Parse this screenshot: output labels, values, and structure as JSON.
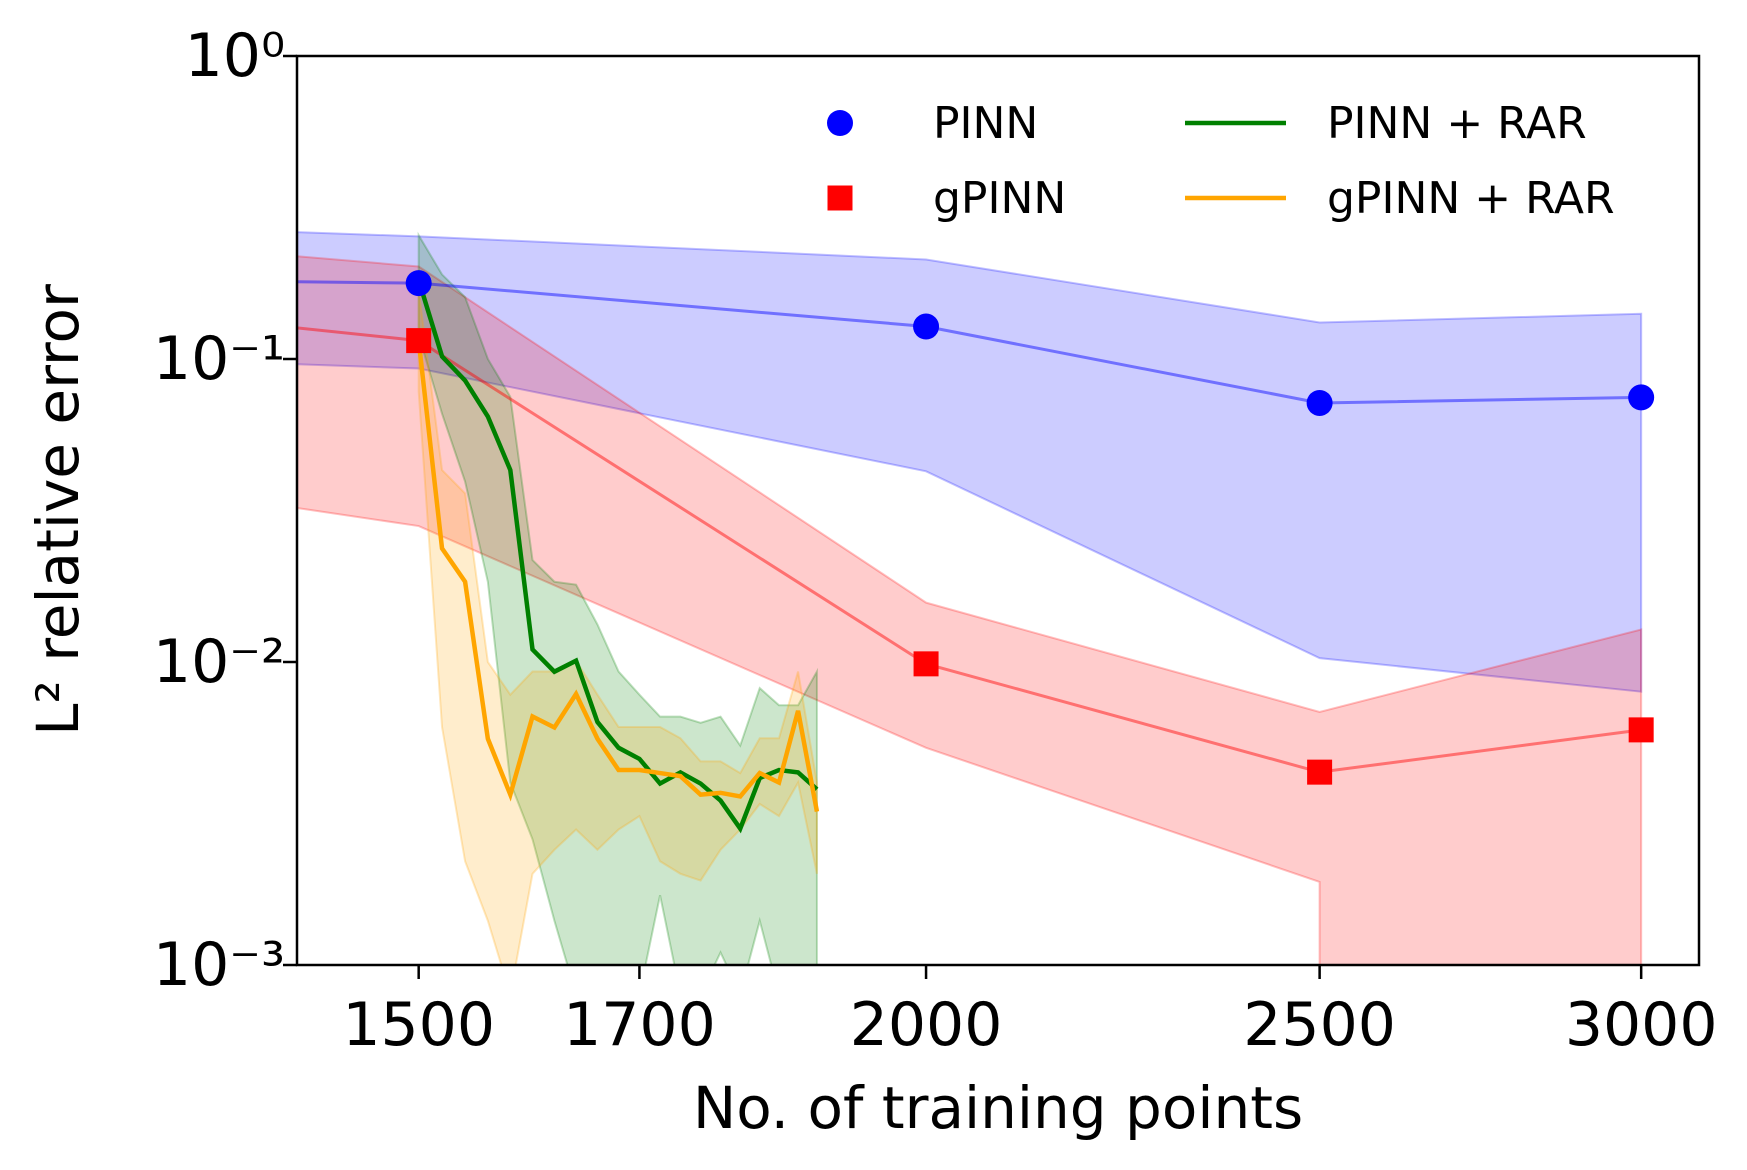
{
  "chart_data": {
    "type": "line",
    "xlabel": "No. of training points",
    "ylabel": "L² relative error",
    "xscale": "log",
    "yscale": "log",
    "xlim": [
      1400,
      3100
    ],
    "xticks": [
      1500,
      1700,
      2000,
      2500,
      3000
    ],
    "ylim": [
      0.001,
      1
    ],
    "yticks": [
      {
        "value": 0.001,
        "label": "10⁻³"
      },
      {
        "value": 0.01,
        "label": "10⁻²"
      },
      {
        "value": 0.1,
        "label": "10⁻¹"
      },
      {
        "value": 1,
        "label": "10⁰"
      }
    ],
    "legend": "upper right",
    "series": [
      {
        "name": "PINN",
        "color": "#0000ff",
        "marker": "circle",
        "x": [
          1390,
          1500,
          2000,
          2500,
          3000
        ],
        "values": [
          0.18,
          0.178,
          0.128,
          0.0716,
          0.0747
        ],
        "upper": [
          0.263,
          0.254,
          0.213,
          0.132,
          0.141
        ],
        "lower": [
          0.0964,
          0.093,
          0.0426,
          0.0103,
          0.00798
        ]
      },
      {
        "name": "gPINN",
        "color": "#ff0000",
        "marker": "square",
        "x": [
          1390,
          1500,
          2000,
          2500,
          3000
        ],
        "values": [
          0.128,
          0.115,
          0.00986,
          0.00433,
          0.00597
        ],
        "upper": [
          0.22,
          0.202,
          0.0157,
          0.00684,
          0.0128
        ],
        "lower": [
          0.0327,
          0.0281,
          0.00521,
          0.00188,
          null
        ]
      },
      {
        "name": "PINN + RAR",
        "color": "#008000",
        "marker": null,
        "x": [
          1500,
          1520,
          1540,
          1560,
          1580,
          1600,
          1620,
          1640,
          1660,
          1680,
          1700,
          1720,
          1740,
          1760,
          1780,
          1800,
          1820,
          1840,
          1860,
          1880
        ],
        "values": [
          0.182,
          0.102,
          0.0849,
          0.0646,
          0.043,
          0.011,
          0.00929,
          0.0101,
          0.00634,
          0.00521,
          0.00479,
          0.00397,
          0.00432,
          0.00397,
          0.00349,
          0.00282,
          0.00414,
          0.0044,
          0.00432,
          0.0038
        ],
        "upper": [
          0.256,
          0.19,
          0.16,
          0.1,
          0.075,
          0.0217,
          0.0184,
          0.018,
          0.0133,
          0.0093,
          0.0078,
          0.0066,
          0.0066,
          0.0063,
          0.0066,
          0.0053,
          0.0082,
          0.0072,
          0.0072,
          0.0093
        ],
        "lower": [
          0.12,
          0.066,
          0.0394,
          0.0184,
          0.004,
          0.0026,
          0.0014,
          0.0008,
          0.0008,
          0.0008,
          0.0008,
          0.0017,
          0.0008,
          0.0008,
          0.0011,
          0.0008,
          0.0014,
          0.0008,
          0.0008,
          0.0008
        ]
      },
      {
        "name": "gPINN + RAR",
        "color": "#ffa500",
        "marker": null,
        "x": [
          1500,
          1520,
          1540,
          1560,
          1580,
          1600,
          1620,
          1640,
          1660,
          1680,
          1700,
          1720,
          1740,
          1760,
          1780,
          1800,
          1820,
          1840,
          1860,
          1880
        ],
        "values": [
          0.115,
          0.0237,
          0.0184,
          0.00558,
          0.00365,
          0.00661,
          0.00608,
          0.00784,
          0.00558,
          0.0044,
          0.0044,
          0.0043,
          0.0042,
          0.00365,
          0.0037,
          0.0036,
          0.0043,
          0.004,
          0.0069,
          0.00321
        ],
        "upper": [
          0.168,
          0.043,
          0.036,
          0.01,
          0.0078,
          0.0093,
          0.0093,
          0.0101,
          0.0078,
          0.0061,
          0.0061,
          0.0061,
          0.0056,
          0.0047,
          0.0047,
          0.0043,
          0.0056,
          0.0056,
          0.0093,
          0.004
        ],
        "lower": [
          0.078,
          0.0061,
          0.0022,
          0.0014,
          0.0008,
          0.002,
          0.0024,
          0.0028,
          0.0024,
          0.0028,
          0.0031,
          0.0022,
          0.002,
          0.0019,
          0.0024,
          0.0028,
          0.0034,
          0.0031,
          0.004,
          0.002
        ]
      }
    ]
  }
}
